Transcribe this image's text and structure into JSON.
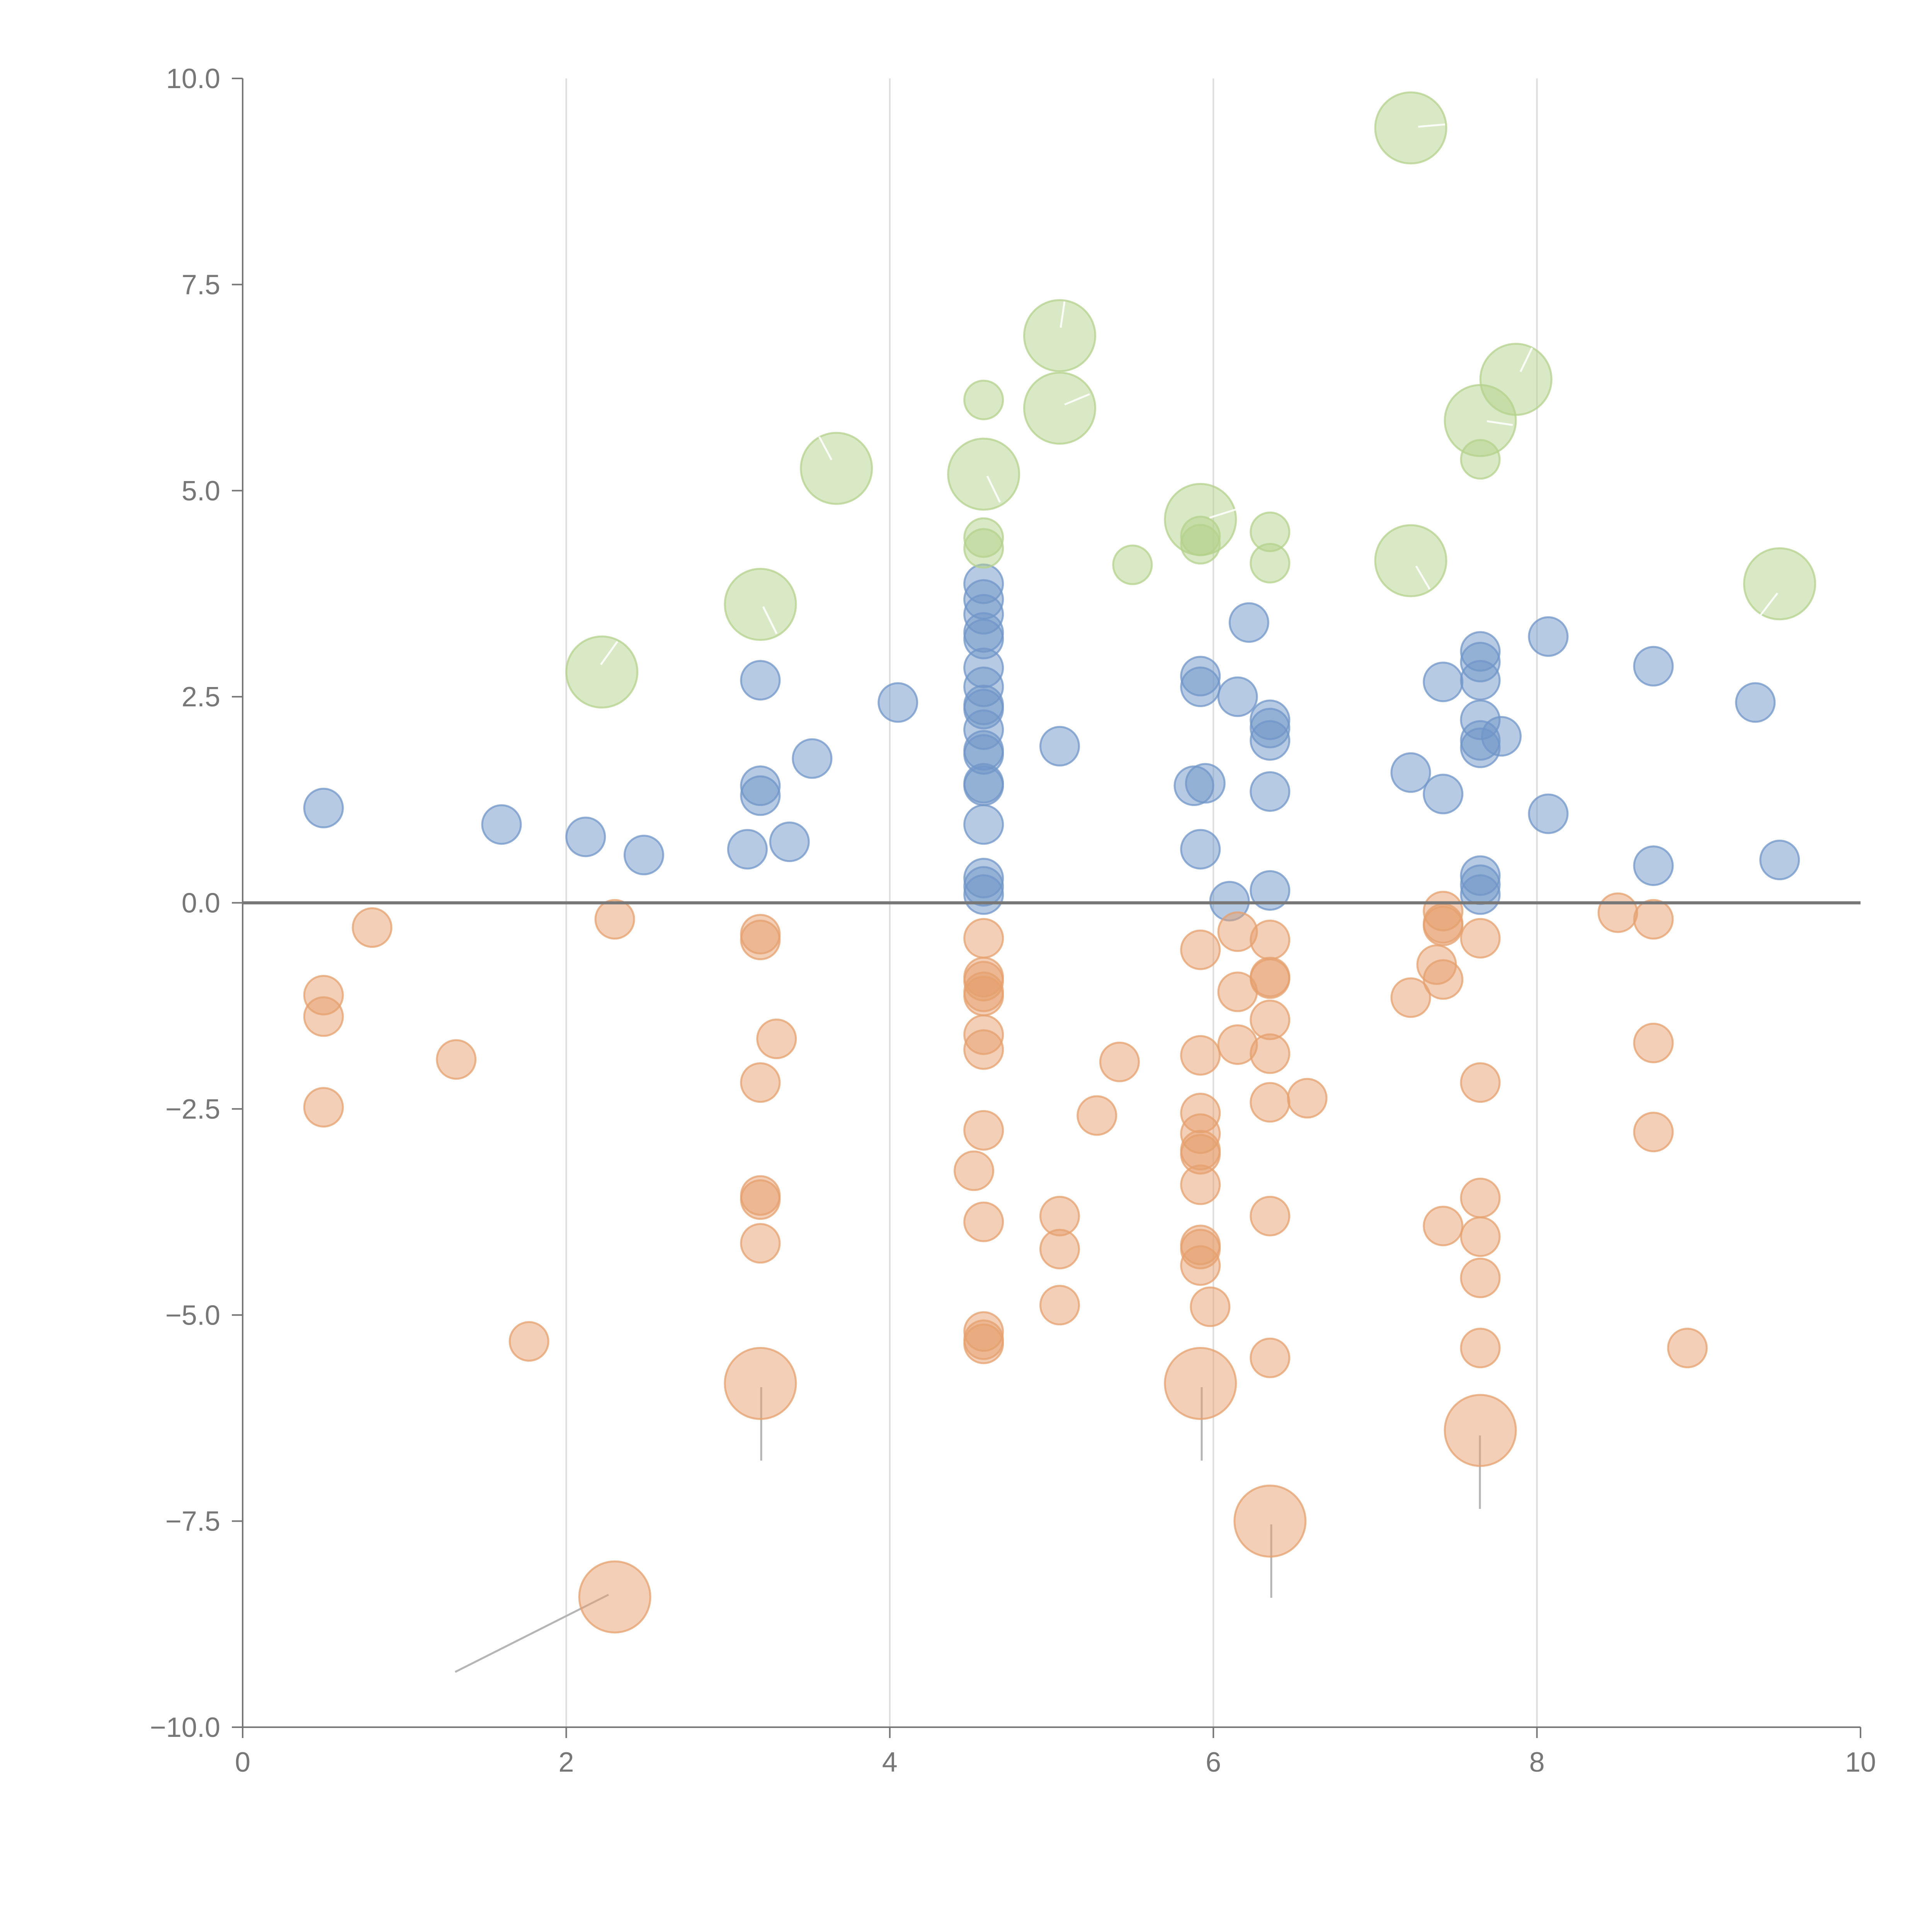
{
  "chart_data": {
    "type": "scatter",
    "title": "",
    "xlabel": "",
    "ylabel": "",
    "xlim": [
      0,
      10
    ],
    "ylim": [
      -10,
      10
    ],
    "x_ticks": [
      0,
      2,
      4,
      6,
      8,
      10
    ],
    "x_tick_labels": [
      "0",
      "2",
      "4",
      "6",
      "8",
      "10"
    ],
    "y_ticks": [
      10,
      7.5,
      5,
      2.5,
      0,
      -2.5,
      -5,
      -7.5,
      -10
    ],
    "y_tick_labels": [
      "10.0",
      "7.5",
      "5.0",
      "2.5",
      "0.0",
      "−2.5",
      "−5.0",
      "−7.5",
      "−10.0"
    ],
    "grid": "vertical",
    "zero_line": true,
    "legend": "none",
    "series": [
      {
        "name": "blue",
        "color": "#7096c8",
        "points": [
          [
            0.5,
            1.15,
            1
          ],
          [
            1.6,
            0.95,
            1
          ],
          [
            2.12,
            0.8,
            1
          ],
          [
            2.48,
            0.58,
            1
          ],
          [
            3.2,
            2.7,
            1
          ],
          [
            3.2,
            1.42,
            1
          ],
          [
            3.2,
            1.3,
            1
          ],
          [
            3.12,
            0.65,
            1
          ],
          [
            3.38,
            0.74,
            1
          ],
          [
            3.52,
            1.75,
            1
          ],
          [
            4.05,
            2.43,
            1
          ],
          [
            4.58,
            3.87,
            1
          ],
          [
            4.58,
            3.68,
            1
          ],
          [
            4.58,
            3.5,
            1
          ],
          [
            4.58,
            3.28,
            1
          ],
          [
            4.58,
            3.2,
            1
          ],
          [
            4.58,
            2.85,
            1
          ],
          [
            4.58,
            2.62,
            1
          ],
          [
            4.58,
            2.4,
            1
          ],
          [
            4.58,
            2.35,
            1
          ],
          [
            4.58,
            2.1,
            1
          ],
          [
            4.58,
            1.85,
            1
          ],
          [
            4.58,
            1.8,
            1
          ],
          [
            4.58,
            1.45,
            1
          ],
          [
            4.58,
            1.42,
            1
          ],
          [
            4.58,
            0.95,
            1
          ],
          [
            4.58,
            0.3,
            1
          ],
          [
            4.58,
            0.2,
            1
          ],
          [
            4.58,
            0.1,
            1
          ],
          [
            5.05,
            1.9,
            1
          ],
          [
            5.92,
            2.75,
            1
          ],
          [
            5.92,
            2.62,
            1
          ],
          [
            5.88,
            1.42,
            1
          ],
          [
            5.95,
            1.45,
            1
          ],
          [
            5.92,
            0.65,
            1
          ],
          [
            6.1,
            0.02,
            1
          ],
          [
            6.15,
            2.5,
            1
          ],
          [
            6.22,
            3.4,
            1
          ],
          [
            6.35,
            2.22,
            1
          ],
          [
            6.35,
            2.12,
            1
          ],
          [
            6.35,
            1.97,
            1
          ],
          [
            6.35,
            1.35,
            1
          ],
          [
            6.35,
            0.15,
            1
          ],
          [
            7.22,
            1.58,
            1
          ],
          [
            7.42,
            2.68,
            1
          ],
          [
            7.42,
            1.32,
            1
          ],
          [
            7.65,
            3.05,
            1
          ],
          [
            7.65,
            2.92,
            1
          ],
          [
            7.65,
            2.7,
            1
          ],
          [
            7.65,
            2.22,
            1
          ],
          [
            7.65,
            1.97,
            1
          ],
          [
            7.65,
            1.88,
            1
          ],
          [
            7.78,
            2.02,
            1
          ],
          [
            7.65,
            0.33,
            1
          ],
          [
            7.65,
            0.22,
            1
          ],
          [
            7.65,
            0.1,
            1
          ],
          [
            8.07,
            3.23,
            1
          ],
          [
            8.07,
            1.08,
            1
          ],
          [
            8.72,
            2.87,
            1
          ],
          [
            8.72,
            0.45,
            1
          ],
          [
            9.35,
            2.43,
            1
          ],
          [
            9.5,
            0.52,
            1
          ]
        ]
      },
      {
        "name": "orange",
        "color": "#e6a06e",
        "points": [
          [
            0.5,
            -1.12,
            1
          ],
          [
            0.5,
            -1.38,
            1
          ],
          [
            0.5,
            -2.48,
            1
          ],
          [
            0.8,
            -0.3,
            1
          ],
          [
            1.32,
            -1.9,
            1
          ],
          [
            1.77,
            -5.32,
            1
          ],
          [
            2.3,
            -0.2,
            1
          ],
          [
            2.3,
            -8.42,
            2
          ],
          [
            3.2,
            -0.38,
            1
          ],
          [
            3.2,
            -0.45,
            1
          ],
          [
            3.3,
            -1.65,
            1
          ],
          [
            3.2,
            -2.18,
            1
          ],
          [
            3.2,
            -3.55,
            1
          ],
          [
            3.2,
            -3.6,
            1
          ],
          [
            3.2,
            -4.13,
            1
          ],
          [
            3.2,
            -5.83,
            2
          ],
          [
            4.58,
            -0.43,
            1
          ],
          [
            4.58,
            -0.9,
            1
          ],
          [
            4.58,
            -0.95,
            1
          ],
          [
            4.58,
            -1.08,
            1
          ],
          [
            4.58,
            -1.13,
            1
          ],
          [
            4.58,
            -1.6,
            1
          ],
          [
            4.58,
            -1.78,
            1
          ],
          [
            4.58,
            -2.76,
            1
          ],
          [
            4.52,
            -3.25,
            1
          ],
          [
            4.58,
            -3.87,
            1
          ],
          [
            4.58,
            -5.2,
            1
          ],
          [
            4.58,
            -5.3,
            1
          ],
          [
            4.58,
            -5.35,
            1
          ],
          [
            5.05,
            -3.8,
            1
          ],
          [
            5.05,
            -4.2,
            1
          ],
          [
            5.05,
            -4.88,
            1
          ],
          [
            5.28,
            -2.58,
            1
          ],
          [
            5.42,
            -1.93,
            1
          ],
          [
            5.92,
            -0.57,
            1
          ],
          [
            6.15,
            -0.35,
            1
          ],
          [
            6.15,
            -1.08,
            1
          ],
          [
            6.15,
            -1.72,
            1
          ],
          [
            5.92,
            -1.85,
            1
          ],
          [
            5.92,
            -2.55,
            1
          ],
          [
            5.92,
            -2.8,
            1
          ],
          [
            5.92,
            -3.0,
            1
          ],
          [
            5.92,
            -3.05,
            1
          ],
          [
            5.92,
            -3.42,
            1
          ],
          [
            5.92,
            -4.15,
            1
          ],
          [
            5.92,
            -4.2,
            1
          ],
          [
            5.92,
            -4.4,
            1
          ],
          [
            5.98,
            -4.9,
            1
          ],
          [
            5.92,
            -5.83,
            2
          ],
          [
            6.35,
            -0.45,
            1
          ],
          [
            6.35,
            -0.9,
            1
          ],
          [
            6.35,
            -0.92,
            1
          ],
          [
            6.35,
            -1.42,
            1
          ],
          [
            6.35,
            -1.83,
            1
          ],
          [
            6.35,
            -2.42,
            1
          ],
          [
            6.58,
            -2.37,
            1
          ],
          [
            6.35,
            -3.8,
            1
          ],
          [
            6.35,
            -5.52,
            1
          ],
          [
            6.35,
            -7.5,
            2
          ],
          [
            7.22,
            -1.15,
            1
          ],
          [
            7.38,
            -0.75,
            1
          ],
          [
            7.42,
            -0.1,
            1
          ],
          [
            7.42,
            -0.25,
            1
          ],
          [
            7.42,
            -0.28,
            1
          ],
          [
            7.42,
            -0.93,
            1
          ],
          [
            7.42,
            -3.92,
            1
          ],
          [
            7.65,
            -0.43,
            1
          ],
          [
            7.65,
            -2.18,
            1
          ],
          [
            7.65,
            -3.58,
            1
          ],
          [
            7.65,
            -4.05,
            1
          ],
          [
            7.65,
            -4.55,
            1
          ],
          [
            7.65,
            -5.4,
            1
          ],
          [
            7.65,
            -6.4,
            2
          ],
          [
            8.5,
            -0.12,
            1
          ],
          [
            8.72,
            -0.2,
            1
          ],
          [
            8.72,
            -1.7,
            1
          ],
          [
            8.72,
            -2.78,
            1
          ],
          [
            8.93,
            -5.4,
            1
          ]
        ]
      },
      {
        "name": "green",
        "color": "#b4d28c",
        "points": [
          [
            2.22,
            2.8,
            2
          ],
          [
            3.2,
            3.62,
            2
          ],
          [
            3.67,
            5.27,
            2
          ],
          [
            4.58,
            6.1,
            1
          ],
          [
            4.58,
            5.2,
            2
          ],
          [
            4.58,
            4.43,
            1
          ],
          [
            4.58,
            4.3,
            1
          ],
          [
            5.05,
            6.88,
            2
          ],
          [
            5.05,
            6.0,
            2
          ],
          [
            5.5,
            4.1,
            1
          ],
          [
            5.92,
            4.65,
            2
          ],
          [
            5.92,
            4.45,
            1
          ],
          [
            5.92,
            4.35,
            1
          ],
          [
            6.35,
            4.5,
            1
          ],
          [
            6.35,
            4.12,
            1
          ],
          [
            7.22,
            9.4,
            2
          ],
          [
            7.22,
            4.15,
            2
          ],
          [
            7.65,
            5.85,
            2
          ],
          [
            7.65,
            5.38,
            1
          ],
          [
            7.87,
            6.35,
            2
          ],
          [
            9.5,
            3.87,
            2
          ]
        ]
      }
    ]
  }
}
